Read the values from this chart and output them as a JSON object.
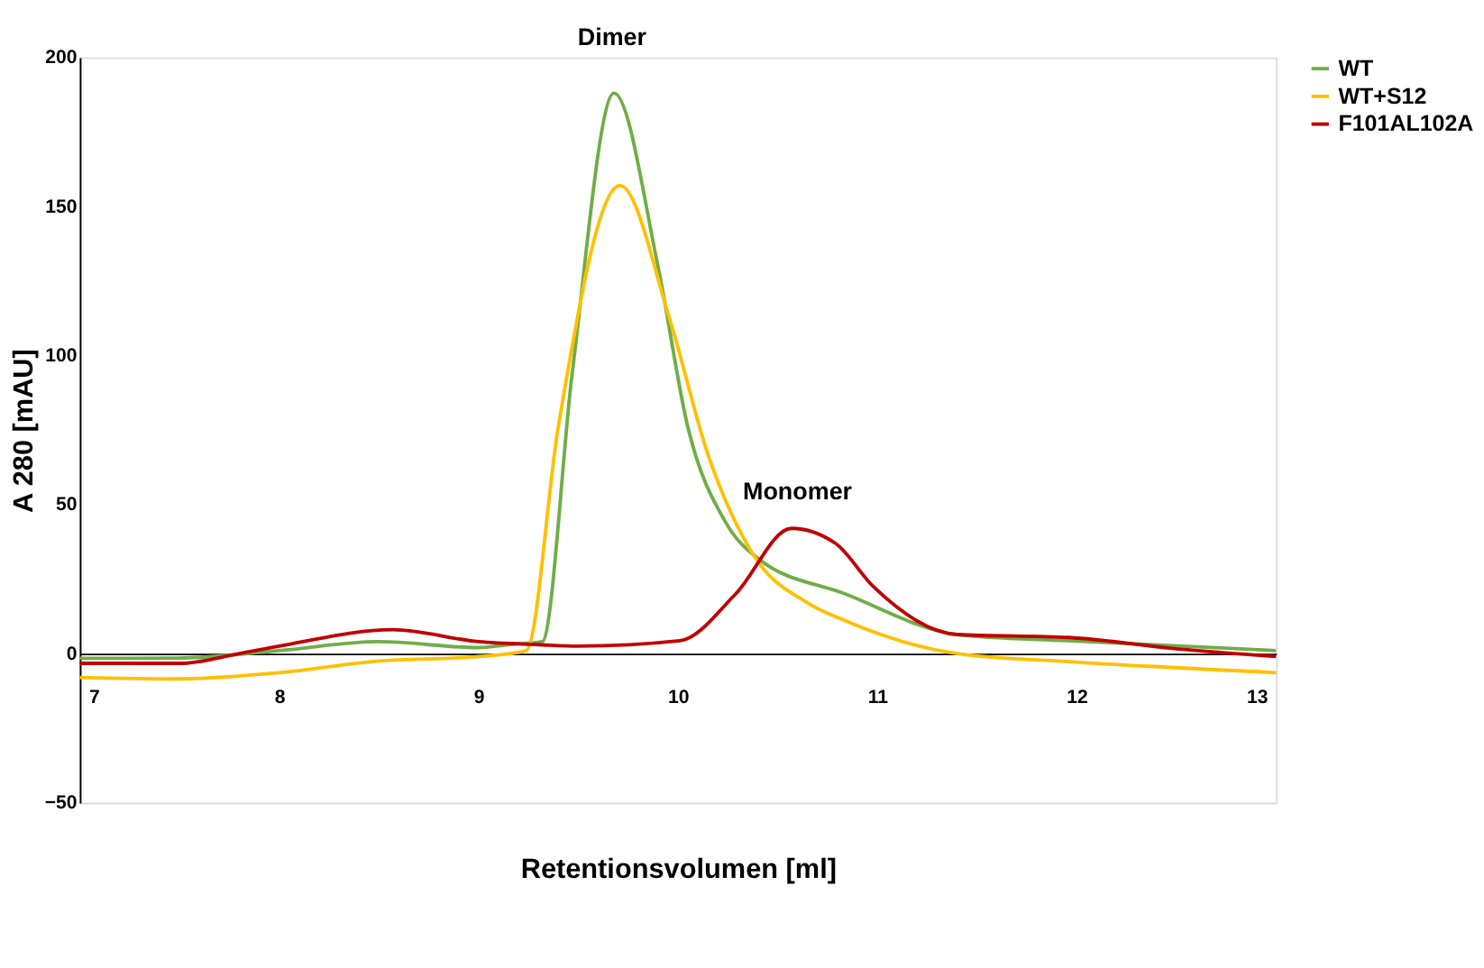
{
  "chart_data": {
    "type": "line",
    "xlabel": "Retentionsvolumen [ml]",
    "ylabel": "A 280 [mAU]",
    "xlim": [
      7,
      13
    ],
    "xticks": [
      7,
      8,
      9,
      10,
      11,
      12,
      13
    ],
    "ylim": [
      -50,
      200
    ],
    "yticks": [
      -50,
      0,
      50,
      100,
      150,
      200
    ],
    "grid": false,
    "legend": "right",
    "marker": "none",
    "line_style": "solid",
    "annotations": [
      "Dimer",
      "Monomer"
    ],
    "series": [
      {
        "name": "WT",
        "color": "#70ad47",
        "x": [
          7,
          7.5,
          8,
          8.5,
          9,
          9.15,
          9.32,
          9.47,
          9.68,
          9.9,
          10.05,
          10.24,
          10.4,
          10.84,
          11.4,
          11.96,
          13
        ],
        "values": [
          -1.6,
          -1.5,
          1,
          4,
          2,
          3,
          4,
          94,
          188,
          130,
          76,
          44,
          32,
          20,
          6.4,
          4.3,
          1
        ]
      },
      {
        "name": "WT+S12",
        "color": "#ffc000",
        "x": [
          7,
          7.5,
          8,
          8.5,
          9,
          9.24,
          9.4,
          9.71,
          9.96,
          10.15,
          10.38,
          10.65,
          10.84,
          11.4,
          11.96,
          13
        ],
        "values": [
          -8,
          -8.5,
          -6.4,
          -2.5,
          -1,
          1,
          76,
          157,
          112,
          67,
          33,
          17,
          11,
          0,
          -2.7,
          -6.4
        ]
      },
      {
        "name": "F101AL102A",
        "color": "#c00000",
        "x": [
          7,
          7.5,
          7.8,
          8,
          8.57,
          9,
          9.3,
          9.5,
          10.01,
          10.29,
          10.57,
          10.79,
          10.98,
          11.4,
          11.96,
          12.5,
          13
        ],
        "values": [
          -3.3,
          -3.3,
          0,
          2.5,
          8,
          4,
          3,
          2.5,
          4.3,
          20,
          42,
          37,
          22.5,
          6.4,
          5.4,
          1.6,
          -1
        ]
      }
    ]
  }
}
